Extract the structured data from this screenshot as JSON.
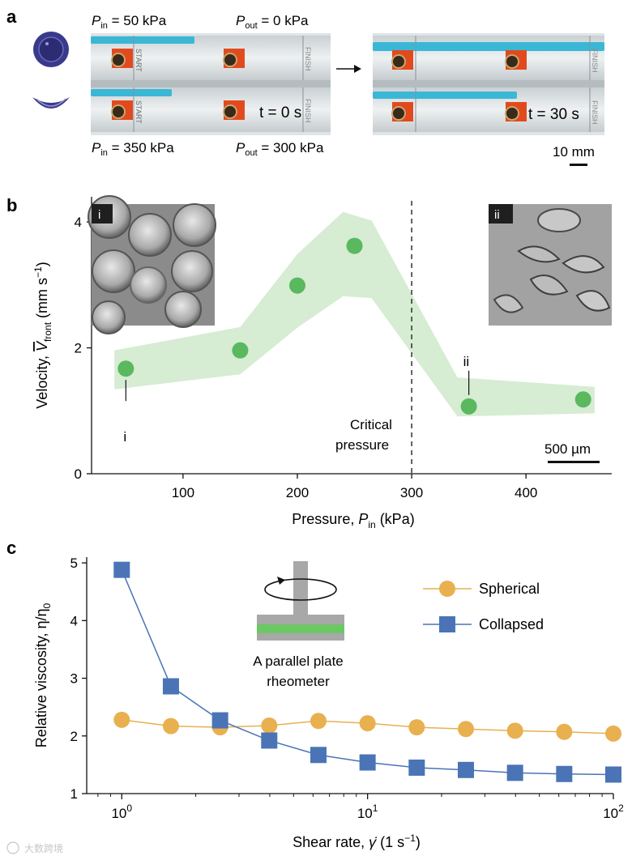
{
  "panels": {
    "a": {
      "label": "a",
      "top_left": {
        "p_in": "50 kPa",
        "p_out": "0 kPa"
      },
      "bottom_left": {
        "p_in": "350 kPa",
        "p_out": "300 kPa"
      },
      "time_left": "t = 0 s",
      "time_right": "t = 30 s",
      "start_text": "START",
      "finish_text": "FINISH",
      "scale_bar": "10 mm",
      "colors": {
        "fluid": "#3bb7d6",
        "pin": "#e24a1e",
        "rail": "#d9dfe2",
        "capsule": "#3a3a8c"
      }
    },
    "b": {
      "label": "b",
      "inset_i": "i",
      "inset_ii": "ii",
      "critical_line1": "Critical",
      "critical_line2": "pressure",
      "scale_bar": "500 µm"
    },
    "c": {
      "label": "c",
      "rheometer_line1": "A parallel plate",
      "rheometer_line2": "rheometer"
    }
  },
  "chart_data": [
    {
      "type": "scatter",
      "panel": "b",
      "xlabel_main": "Pressure, ",
      "xlabel_var": "P",
      "xlabel_sub": "in",
      "xlabel_unit": " (kPa)",
      "ylabel_main": "Velocity, ",
      "ylabel_var": "V",
      "ylabel_sub": "front",
      "ylabel_unit": " (mm s",
      "ylabel_sup": "−1",
      "ylabel_close": ")",
      "xlim": [
        20,
        475
      ],
      "ylim": [
        0,
        4.4
      ],
      "xticks": [
        100,
        200,
        300,
        400
      ],
      "yticks": [
        0,
        2,
        4
      ],
      "points": [
        {
          "x": 50,
          "y": 1.67
        },
        {
          "x": 150,
          "y": 1.96
        },
        {
          "x": 200,
          "y": 2.99
        },
        {
          "x": 250,
          "y": 3.62
        },
        {
          "x": 350,
          "y": 1.07
        },
        {
          "x": 450,
          "y": 1.18
        }
      ],
      "band_upper": [
        [
          40,
          1.96
        ],
        [
          150,
          2.33
        ],
        [
          200,
          3.49
        ],
        [
          240,
          4.16
        ],
        [
          265,
          4.02
        ],
        [
          340,
          1.53
        ],
        [
          460,
          1.38
        ]
      ],
      "band_lower": [
        [
          40,
          1.34
        ],
        [
          150,
          1.58
        ],
        [
          200,
          2.32
        ],
        [
          240,
          2.82
        ],
        [
          265,
          2.79
        ],
        [
          340,
          0.91
        ],
        [
          460,
          0.96
        ]
      ],
      "critical_pressure": 300,
      "annotations": [
        {
          "label": "i",
          "x": 50
        },
        {
          "label": "ii",
          "x": 350
        }
      ],
      "colors": {
        "points": "#5ab85f",
        "band": "#d6ecd3"
      }
    },
    {
      "type": "line",
      "panel": "c",
      "xscale": "log",
      "xlabel_main": "Shear rate, ",
      "xlabel_var": "γ̇",
      "xlabel_unit": " (1 s",
      "xlabel_sup": "−1",
      "xlabel_close": ")",
      "ylabel": "Relative viscosity, η/η",
      "ylabel_sub": "0",
      "xlim": [
        0.72,
        100
      ],
      "ylim": [
        1,
        5.1
      ],
      "yticks": [
        1,
        2,
        3,
        4,
        5
      ],
      "xticks": [
        {
          "value": 1,
          "base": "10",
          "exp": "0"
        },
        {
          "value": 10,
          "base": "10",
          "exp": "1"
        },
        {
          "value": 100,
          "base": "10",
          "exp": "2"
        }
      ],
      "series": [
        {
          "name": "Spherical",
          "color": "#e8b04f",
          "marker": "circle",
          "x": [
            1,
            1.585,
            2.512,
            3.981,
            6.31,
            10,
            15.85,
            25.12,
            39.81,
            63.1,
            100
          ],
          "y": [
            2.28,
            2.17,
            2.15,
            2.18,
            2.26,
            2.22,
            2.15,
            2.12,
            2.09,
            2.07,
            2.04
          ]
        },
        {
          "name": "Collapsed",
          "color": "#4a74b6",
          "marker": "square",
          "x": [
            1,
            1.585,
            2.512,
            3.981,
            6.31,
            10,
            15.85,
            25.12,
            39.81,
            63.1,
            100
          ],
          "y": [
            4.88,
            2.86,
            2.27,
            1.92,
            1.67,
            1.54,
            1.45,
            1.41,
            1.36,
            1.34,
            1.33
          ]
        }
      ],
      "legend_position": "top-right"
    }
  ],
  "watermark": "大数跨境"
}
